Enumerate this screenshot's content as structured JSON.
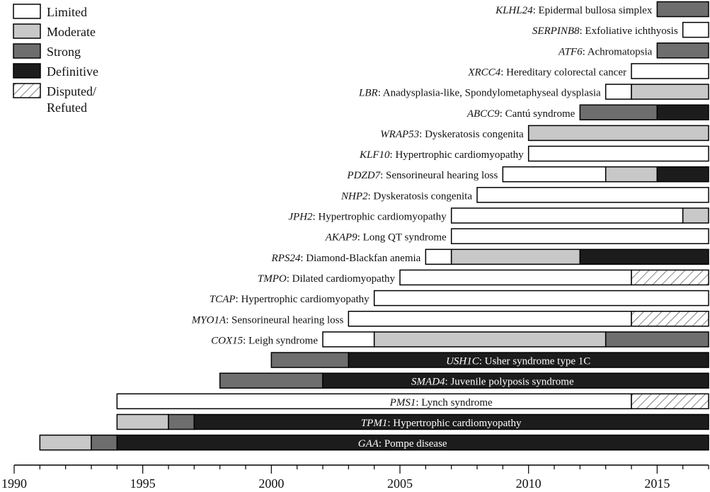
{
  "chart_data": {
    "type": "bar",
    "subtype": "horizontal-timeline",
    "title": "",
    "xlabel": "",
    "ylabel": "",
    "xlim": [
      1990,
      2017
    ],
    "xticks": [
      "1990",
      "1995",
      "2000",
      "2005",
      "2010",
      "2015"
    ],
    "legend": {
      "placement": "top-left",
      "entries": [
        {
          "key": "limited",
          "label": "Limited",
          "color": "#ffffff"
        },
        {
          "key": "moderate",
          "label": "Moderate",
          "color": "#c8c8c8"
        },
        {
          "key": "strong",
          "label": "Strong",
          "color": "#6e6e6e"
        },
        {
          "key": "definitive",
          "label": "Definitive",
          "color": "#1c1c1c"
        },
        {
          "key": "disputed",
          "label": "Disputed/ Refuted",
          "label_lines": [
            "Disputed/",
            "Refuted"
          ],
          "pattern": "diagonal-hatch"
        }
      ]
    },
    "rows": [
      {
        "gene": "KLHL24",
        "disease": "Epidermal bullosa simplex",
        "segments": [
          {
            "start": 2015,
            "end": 2017,
            "class": "strong"
          }
        ]
      },
      {
        "gene": "SERPINB8",
        "disease": "Exfoliative ichthyosis",
        "segments": [
          {
            "start": 2016,
            "end": 2017,
            "class": "limited"
          }
        ]
      },
      {
        "gene": "ATF6",
        "disease": "Achromatopsia",
        "segments": [
          {
            "start": 2015,
            "end": 2017,
            "class": "strong"
          }
        ]
      },
      {
        "gene": "XRCC4",
        "disease": "Hereditary colorectal cancer",
        "segments": [
          {
            "start": 2014,
            "end": 2017,
            "class": "limited"
          }
        ]
      },
      {
        "gene": "LBR",
        "disease": "Anadysplasia-like, Spondylometaphyseal dysplasia",
        "segments": [
          {
            "start": 2013,
            "end": 2014,
            "class": "limited"
          },
          {
            "start": 2014,
            "end": 2017,
            "class": "moderate"
          }
        ]
      },
      {
        "gene": "ABCC9",
        "disease": "Cantú syndrome",
        "segments": [
          {
            "start": 2012,
            "end": 2015,
            "class": "strong"
          },
          {
            "start": 2015,
            "end": 2017,
            "class": "definitive"
          }
        ]
      },
      {
        "gene": "WRAP53",
        "disease": "Dyskeratosis congenita",
        "segments": [
          {
            "start": 2010,
            "end": 2017,
            "class": "moderate"
          }
        ]
      },
      {
        "gene": "KLF10",
        "disease": "Hypertrophic cardiomyopathy",
        "segments": [
          {
            "start": 2010,
            "end": 2017,
            "class": "limited"
          }
        ]
      },
      {
        "gene": "PDZD7",
        "disease": "Sensorineural hearing loss",
        "segments": [
          {
            "start": 2009,
            "end": 2013,
            "class": "limited"
          },
          {
            "start": 2013,
            "end": 2015,
            "class": "moderate"
          },
          {
            "start": 2015,
            "end": 2017,
            "class": "definitive"
          }
        ]
      },
      {
        "gene": "NHP2",
        "disease": "Dyskeratosis congenita",
        "segments": [
          {
            "start": 2008,
            "end": 2017,
            "class": "limited"
          }
        ]
      },
      {
        "gene": "JPH2",
        "disease": "Hypertrophic cardiomyopathy",
        "segments": [
          {
            "start": 2007,
            "end": 2016,
            "class": "limited"
          },
          {
            "start": 2016,
            "end": 2017,
            "class": "moderate"
          }
        ]
      },
      {
        "gene": "AKAP9",
        "disease": "Long QT syndrome",
        "segments": [
          {
            "start": 2007,
            "end": 2017,
            "class": "limited"
          }
        ]
      },
      {
        "gene": "RPS24",
        "disease": "Diamond-Blackfan anemia",
        "segments": [
          {
            "start": 2006,
            "end": 2007,
            "class": "limited"
          },
          {
            "start": 2007,
            "end": 2012,
            "class": "moderate"
          },
          {
            "start": 2012,
            "end": 2017,
            "class": "definitive"
          }
        ]
      },
      {
        "gene": "TMPO",
        "disease": "Dilated cardiomyopathy",
        "segments": [
          {
            "start": 2005,
            "end": 2014,
            "class": "limited"
          },
          {
            "start": 2014,
            "end": 2017,
            "class": "disputed"
          }
        ]
      },
      {
        "gene": "TCAP",
        "disease": "Hypertrophic cardiomyopathy",
        "segments": [
          {
            "start": 2004,
            "end": 2017,
            "class": "limited"
          }
        ]
      },
      {
        "gene": "MYO1A",
        "disease": "Sensorineural hearing loss",
        "segments": [
          {
            "start": 2003,
            "end": 2014,
            "class": "limited"
          },
          {
            "start": 2014,
            "end": 2017,
            "class": "disputed"
          }
        ]
      },
      {
        "gene": "COX15",
        "disease": "Leigh syndrome",
        "segments": [
          {
            "start": 2002,
            "end": 2004,
            "class": "limited"
          },
          {
            "start": 2004,
            "end": 2013,
            "class": "moderate"
          },
          {
            "start": 2013,
            "end": 2017,
            "class": "strong"
          }
        ]
      },
      {
        "gene": "USH1C",
        "disease": "Usher syndrome type 1C",
        "label_inside": true,
        "segments": [
          {
            "start": 2000,
            "end": 2003,
            "class": "strong"
          },
          {
            "start": 2003,
            "end": 2017,
            "class": "definitive"
          }
        ]
      },
      {
        "gene": "SMAD4",
        "disease": "Juvenile polyposis syndrome",
        "label_inside": true,
        "segments": [
          {
            "start": 1998,
            "end": 2002,
            "class": "strong"
          },
          {
            "start": 2002,
            "end": 2017,
            "class": "definitive"
          }
        ]
      },
      {
        "gene": "PMS1",
        "disease": "Lynch syndrome",
        "label_inside": true,
        "segments": [
          {
            "start": 1994,
            "end": 2014,
            "class": "limited"
          },
          {
            "start": 2014,
            "end": 2017,
            "class": "disputed"
          }
        ]
      },
      {
        "gene": "TPM1",
        "disease": "Hypertrophic cardiomyopathy",
        "label_inside": true,
        "segments": [
          {
            "start": 1994,
            "end": 1996,
            "class": "moderate"
          },
          {
            "start": 1996,
            "end": 1997,
            "class": "strong"
          },
          {
            "start": 1997,
            "end": 2017,
            "class": "definitive"
          }
        ]
      },
      {
        "gene": "GAA",
        "disease": "Pompe disease",
        "label_inside": true,
        "segments": [
          {
            "start": 1991,
            "end": 1993,
            "class": "moderate"
          },
          {
            "start": 1993,
            "end": 1994,
            "class": "strong"
          },
          {
            "start": 1994,
            "end": 2017,
            "class": "definitive"
          }
        ]
      }
    ]
  }
}
